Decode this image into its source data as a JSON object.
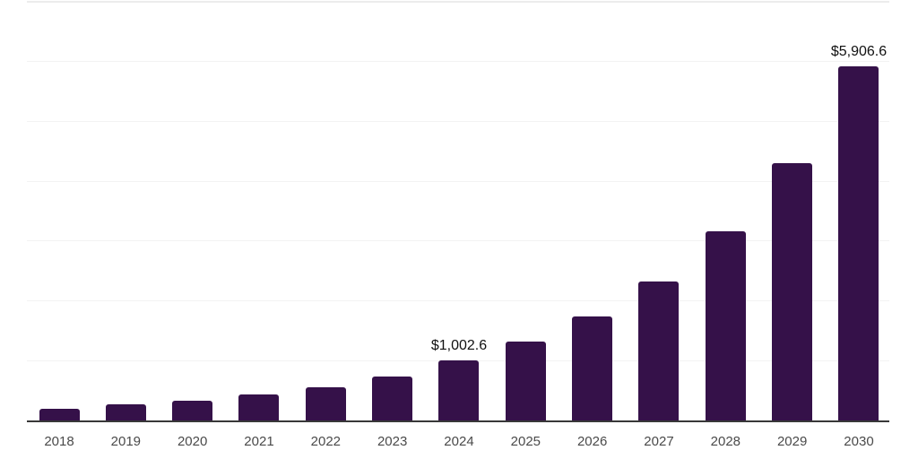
{
  "chart": {
    "background": "#ffffff",
    "bar_color": "#351149",
    "axis_line_color": "#383838",
    "gridline_color": "#f3f3f3",
    "top_gridline_color": "#ececec",
    "tick_label_color": "#4a4a4a",
    "value_label_color": "#111111"
  },
  "chart_data": {
    "type": "bar",
    "title": "",
    "xlabel": "",
    "ylabel": "",
    "categories": [
      "2018",
      "2019",
      "2020",
      "2021",
      "2022",
      "2023",
      "2024",
      "2025",
      "2026",
      "2027",
      "2028",
      "2029",
      "2030"
    ],
    "values": [
      195,
      262,
      330,
      430,
      550,
      740,
      1002.6,
      1315,
      1740,
      2325,
      3155,
      4300,
      5906.6
    ],
    "data_labels": [
      "",
      "",
      "",
      "",
      "",
      "",
      "$1,002.6",
      "",
      "",
      "",
      "",
      "",
      "$5,906.6"
    ],
    "ylim": [
      0,
      7000
    ],
    "gridline_step": 1000,
    "grid": "horizontal-only",
    "y_axis_tick_labels_visible": false,
    "legend": "none"
  }
}
